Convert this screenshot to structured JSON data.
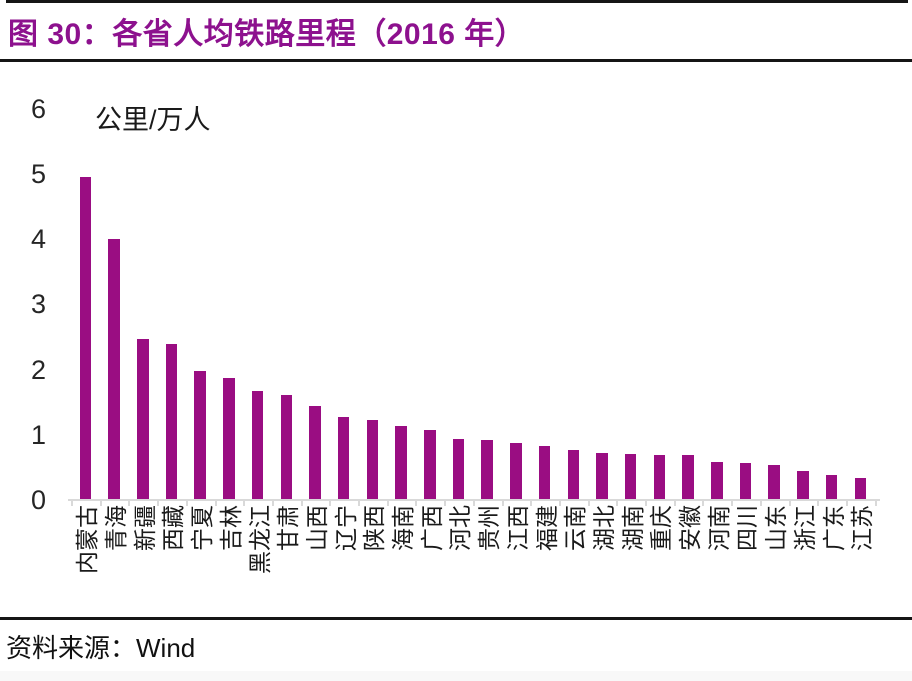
{
  "page": {
    "title": "图 30：各省人均铁路里程（2016 年）",
    "source_label": "资料来源：Wind"
  },
  "chart_data": {
    "type": "bar",
    "title": "各省人均铁路里程（2016 年）",
    "unit_label": "公里/万人",
    "xlabel": "",
    "ylabel": "公里/万人",
    "ylim": [
      0,
      6
    ],
    "yticks": [
      0,
      1,
      2,
      3,
      4,
      5,
      6
    ],
    "grid": false,
    "legend_position": "none",
    "bar_color": "#9A0D82",
    "categories": [
      "内蒙古",
      "青海",
      "新疆",
      "西藏",
      "宁夏",
      "吉林",
      "黑龙江",
      "甘肃",
      "山西",
      "辽宁",
      "陕西",
      "海南",
      "广西",
      "河北",
      "贵州",
      "江西",
      "福建",
      "云南",
      "湖北",
      "湖南",
      "重庆",
      "安徽",
      "河南",
      "四川",
      "山东",
      "浙江",
      "广东",
      "江苏"
    ],
    "values": [
      4.95,
      4.0,
      2.47,
      2.4,
      1.98,
      1.87,
      1.67,
      1.61,
      1.44,
      1.28,
      1.22,
      1.13,
      1.07,
      0.94,
      0.92,
      0.88,
      0.83,
      0.76,
      0.72,
      0.7,
      0.69,
      0.69,
      0.58,
      0.57,
      0.54,
      0.45,
      0.38,
      0.34
    ]
  },
  "colors": {
    "title": "#8D118E",
    "bar": "#9A0D82",
    "axis_line": "#D9D9D9",
    "divider": "#151515",
    "text": "#1a1a1a"
  }
}
